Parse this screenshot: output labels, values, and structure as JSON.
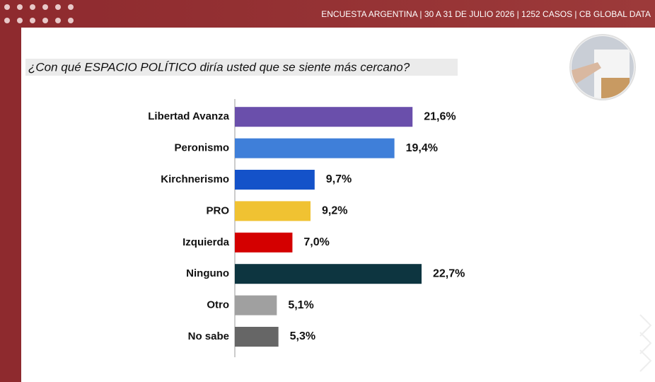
{
  "chart_data": {
    "type": "bar",
    "subtitle": "ENCUESTA ARGENTINA | 30 A 31 DE JULIO 2026 | 1252 CASOS | CB GLOBAL DATA",
    "title": "¿Con qué ESPACIO POLÍTICO diría usted que se siente más cercano?",
    "categories": [
      "Libertad Avanza",
      "Peronismo",
      "Kirchnerismo",
      "PRO",
      "Izquierda",
      "Ninguno",
      "Otro",
      "No sabe"
    ],
    "values": [
      21.6,
      19.4,
      9.7,
      9.2,
      7.0,
      22.7,
      5.1,
      5.3
    ],
    "value_labels": [
      "21,6%",
      "19,4%",
      "9,7%",
      "9,2%",
      "7,0%",
      "22,7%",
      "5,1%",
      "5,3%"
    ],
    "colors": [
      "#6a4fab",
      "#3f7fd9",
      "#1452c9",
      "#f0c232",
      "#d40000",
      "#0d3540",
      "#a0a0a0",
      "#666666"
    ]
  }
}
